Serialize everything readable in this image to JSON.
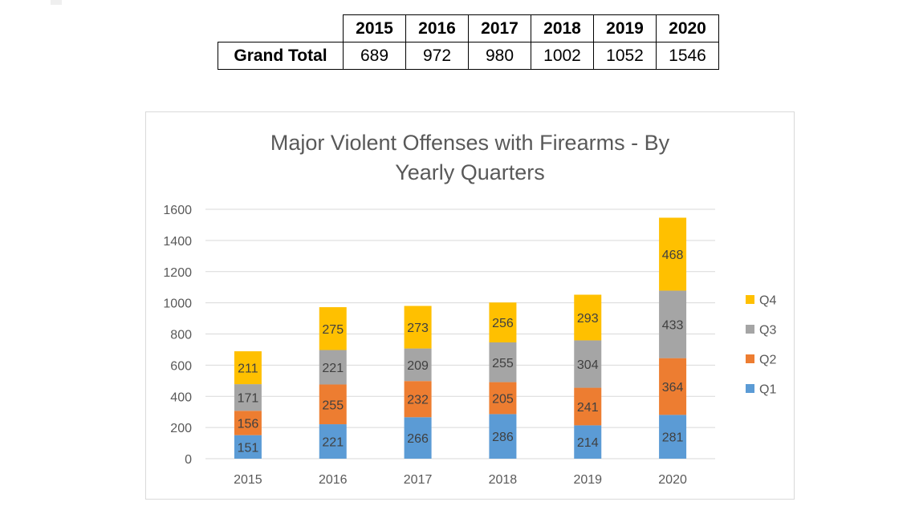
{
  "table": {
    "row_header": "Grand Total",
    "years": [
      "2015",
      "2016",
      "2017",
      "2018",
      "2019",
      "2020"
    ],
    "totals": [
      "689",
      "972",
      "980",
      "1002",
      "1052",
      "1546"
    ]
  },
  "chart_data": {
    "type": "bar",
    "stacked": true,
    "title_line1": "Major Violent Offenses with Firearms - By",
    "title_line2": "Yearly Quarters",
    "categories": [
      "2015",
      "2016",
      "2017",
      "2018",
      "2019",
      "2020"
    ],
    "series": [
      {
        "name": "Q1",
        "color": "#5b9bd5",
        "values": [
          151,
          221,
          266,
          286,
          214,
          281
        ]
      },
      {
        "name": "Q2",
        "color": "#ed7d31",
        "values": [
          156,
          255,
          232,
          205,
          241,
          364
        ]
      },
      {
        "name": "Q3",
        "color": "#a5a5a5",
        "values": [
          171,
          221,
          209,
          255,
          304,
          433
        ]
      },
      {
        "name": "Q4",
        "color": "#ffc000",
        "values": [
          211,
          275,
          273,
          256,
          293,
          468
        ]
      }
    ],
    "ylim": [
      0,
      1600
    ],
    "yticks": [
      0,
      200,
      400,
      600,
      800,
      1000,
      1200,
      1400,
      1600
    ],
    "grid": true,
    "legend_position": "right",
    "legend_order": [
      "Q4",
      "Q3",
      "Q2",
      "Q1"
    ],
    "data_labels": true
  }
}
